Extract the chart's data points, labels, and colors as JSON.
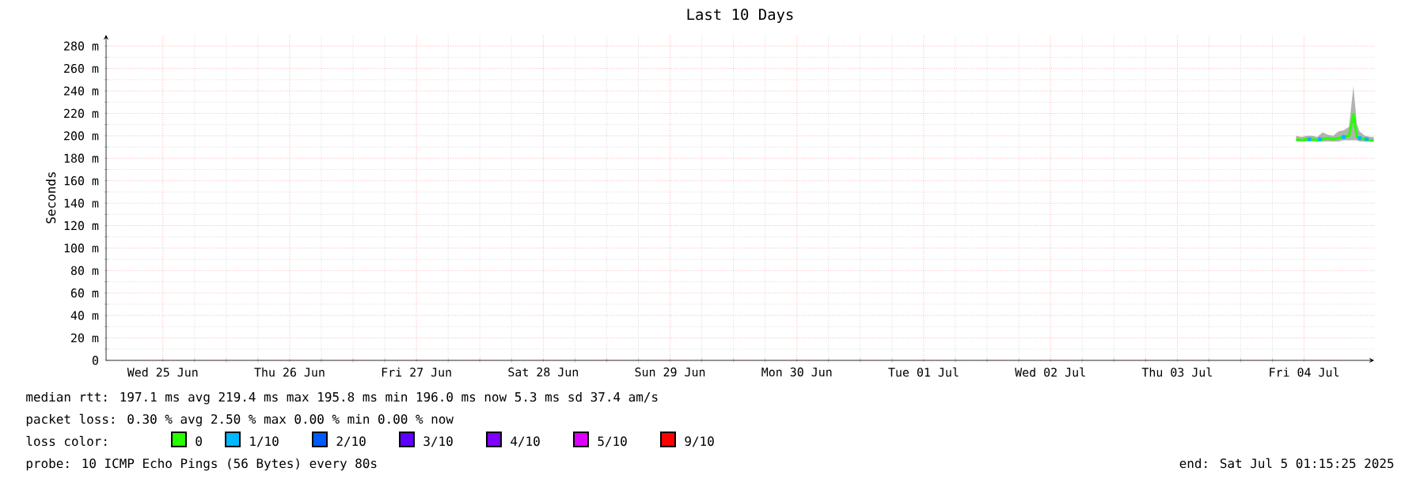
{
  "chart_data": {
    "type": "line",
    "title": "Last 10 Days",
    "ylabel": "Seconds",
    "legend_title": "loss color:",
    "legend": "bottom",
    "grid": true,
    "xlim": [
      "2025-06-25T01:15",
      "2025-07-05T01:15"
    ],
    "xticks": [
      {
        "value": "2025-06-25T12:00",
        "label": "Wed 25 Jun"
      },
      {
        "value": "2025-06-26T12:00",
        "label": "Thu 26 Jun"
      },
      {
        "value": "2025-06-27T12:00",
        "label": "Fri 27 Jun"
      },
      {
        "value": "2025-06-28T12:00",
        "label": "Sat 28 Jun"
      },
      {
        "value": "2025-06-29T12:00",
        "label": "Sun 29 Jun"
      },
      {
        "value": "2025-06-30T12:00",
        "label": "Mon 30 Jun"
      },
      {
        "value": "2025-07-01T12:00",
        "label": "Tue 01 Jul"
      },
      {
        "value": "2025-07-02T12:00",
        "label": "Wed 02 Jul"
      },
      {
        "value": "2025-07-03T12:00",
        "label": "Thu 03 Jul"
      },
      {
        "value": "2025-07-04T12:00",
        "label": "Fri 04 Jul"
      }
    ],
    "ylim": [
      0,
      290
    ],
    "yticks": [
      {
        "value": 0,
        "label": "0"
      },
      {
        "value": 20,
        "label": "20 m"
      },
      {
        "value": 40,
        "label": "40 m"
      },
      {
        "value": 60,
        "label": "60 m"
      },
      {
        "value": 80,
        "label": "80 m"
      },
      {
        "value": 100,
        "label": "100 m"
      },
      {
        "value": 120,
        "label": "120 m"
      },
      {
        "value": 140,
        "label": "140 m"
      },
      {
        "value": 160,
        "label": "160 m"
      },
      {
        "value": 180,
        "label": "180 m"
      },
      {
        "value": 200,
        "label": "200 m"
      },
      {
        "value": 220,
        "label": "220 m"
      },
      {
        "value": 240,
        "label": "240 m"
      },
      {
        "value": 260,
        "label": "260 m"
      },
      {
        "value": 280,
        "label": "280 m"
      }
    ],
    "series": [
      {
        "name": "0",
        "color": "#26ff00",
        "x": [
          "2025-07-04T10:30",
          "2025-07-04T11:30",
          "2025-07-04T12:30",
          "2025-07-04T13:30",
          "2025-07-04T14:30",
          "2025-07-04T15:30",
          "2025-07-04T16:30",
          "2025-07-04T17:30",
          "2025-07-04T18:30",
          "2025-07-04T19:30",
          "2025-07-04T20:30",
          "2025-07-04T21:20",
          "2025-07-04T22:00",
          "2025-07-04T22:30",
          "2025-07-04T23:30",
          "2025-07-05T00:30",
          "2025-07-05T01:10"
        ],
        "values": [
          197,
          196,
          197,
          197,
          196,
          197,
          198,
          197,
          198,
          199,
          200,
          219,
          199,
          198,
          197,
          196,
          196
        ],
        "lower": [
          195,
          195,
          195,
          195,
          195,
          195,
          195,
          195,
          195,
          196,
          196,
          196,
          196,
          195,
          195,
          195,
          195
        ],
        "upper": [
          200,
          199,
          200,
          200,
          199,
          203,
          201,
          200,
          204,
          205,
          208,
          244,
          210,
          204,
          200,
          199,
          199
        ]
      },
      {
        "name": "1/10",
        "type": "scatter",
        "marker": "square",
        "color": "#00b8ff",
        "x": [
          "2025-07-04T13:00",
          "2025-07-04T15:00",
          "2025-07-04T19:30",
          "2025-07-04T22:30",
          "2025-07-04T23:50"
        ],
        "values": [
          197,
          197,
          199,
          198,
          197
        ]
      },
      {
        "name": "2/10",
        "color": "#0059ff"
      },
      {
        "name": "3/10",
        "color": "#5e00ff"
      },
      {
        "name": "4/10",
        "color": "#7e00ff"
      },
      {
        "name": "5/10",
        "color": "#dd00ff"
      },
      {
        "name": "9/10",
        "color": "#ff0000"
      }
    ],
    "annotations": [
      "median rtt:  197.1 ms avg  219.4 ms max  195.8 ms min  196.0 ms now  5.3 ms sd  37.4   am/s",
      "packet loss: 0.30 % avg  2.50 % max  0.00 % min  0.00 % now",
      "probe:       10 ICMP Echo Pings (56 Bytes) every 80s",
      "end: Sat Jul  5 01:15:25 2025"
    ]
  }
}
